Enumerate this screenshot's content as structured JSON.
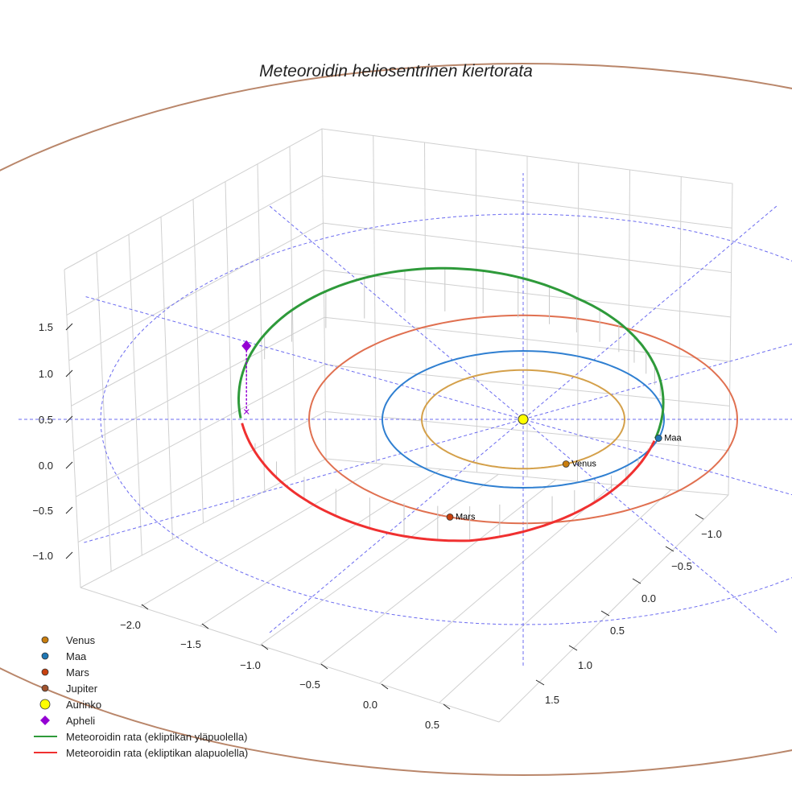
{
  "chart_data": {
    "type": "line",
    "title": "Meteoroidin heliosentrinen kiertorata",
    "projection": "3d",
    "grid": true,
    "legend_position": "bottom-left",
    "x_ticks": [
      "−2.0",
      "−1.5",
      "−1.0",
      "−0.5",
      "0.0",
      "0.5"
    ],
    "y_ticks": [
      "−1.0",
      "−0.5",
      "0.0",
      "0.5",
      "1.0",
      "1.5"
    ],
    "z_ticks": [
      "1.5",
      "1.0",
      "0.5",
      "0.0",
      "−0.5",
      "−1.0"
    ],
    "planets": [
      {
        "name": "Venus",
        "label": "Venus",
        "a_au": 0.72,
        "color": "#d4a04a",
        "marker_color": "#c87d0e",
        "angle_deg": -65
      },
      {
        "name": "Maa",
        "label": "Maa",
        "a_au": 1.0,
        "color": "#2f7fd1",
        "marker_color": "#1f77b4",
        "angle_deg": -16
      },
      {
        "name": "Mars",
        "label": "Mars",
        "a_au": 1.52,
        "color": "#e07050",
        "marker_color": "#c8410e",
        "angle_deg": -110
      },
      {
        "name": "Jupiter",
        "label": "Jupiter",
        "a_au": 5.2,
        "color": "#b9866a",
        "marker_color": "#a0522d",
        "angle_deg": 58
      }
    ],
    "reference_circle_au": 3.0,
    "meteoroid_orbit": {
      "perihelion_au": 0.98,
      "aphelion_au": 2.05,
      "color_above": "#2e9a3a",
      "color_below": "#f03030"
    },
    "legend": [
      {
        "label": "Venus",
        "color": "#c87d0e",
        "marker": "circle"
      },
      {
        "label": "Maa",
        "color": "#1f77b4",
        "marker": "circle"
      },
      {
        "label": "Mars",
        "color": "#c8410e",
        "marker": "circle"
      },
      {
        "label": "Jupiter",
        "color": "#a0522d",
        "marker": "circle"
      },
      {
        "label": "Aurinko",
        "color": "#ffff00",
        "marker": "circle-large"
      },
      {
        "label": "Apheli",
        "color": "#9400d3",
        "marker": "diamond"
      },
      {
        "label": "Meteoroidin rata (ekliptikan yläpuolella)",
        "color": "#2e9a3a",
        "marker": "line"
      },
      {
        "label": "Meteoroidin rata (ekliptikan alapuolella)",
        "color": "#f03030",
        "marker": "line"
      }
    ]
  }
}
